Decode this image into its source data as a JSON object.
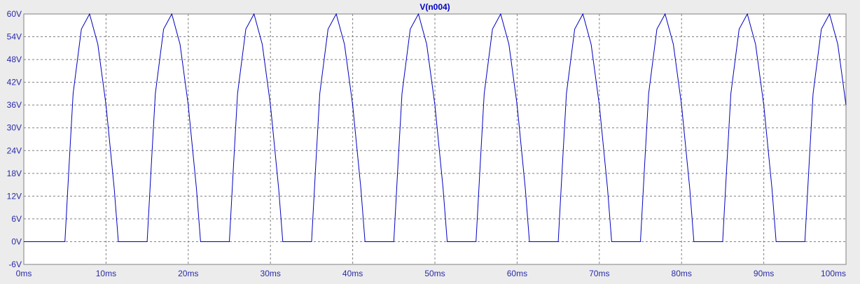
{
  "chart_data": {
    "type": "line",
    "title": "V(n004)",
    "xlabel": "",
    "ylabel": "",
    "x_unit": "ms",
    "y_unit": "V",
    "xlim": [
      0,
      100
    ],
    "ylim": [
      -6,
      60
    ],
    "x_ticks": [
      0,
      10,
      20,
      30,
      40,
      50,
      60,
      70,
      80,
      90,
      100
    ],
    "y_ticks": [
      -6,
      0,
      6,
      12,
      18,
      24,
      30,
      36,
      42,
      48,
      54,
      60
    ],
    "x_tick_labels": [
      "0ms",
      "10ms",
      "20ms",
      "30ms",
      "40ms",
      "50ms",
      "60ms",
      "70ms",
      "80ms",
      "90ms",
      "100ms"
    ],
    "y_tick_labels": [
      "-6V",
      "0V",
      "6V",
      "12V",
      "18V",
      "24V",
      "30V",
      "36V",
      "42V",
      "48V",
      "54V",
      "60V"
    ],
    "grid": true,
    "series": [
      {
        "name": "V(n004)",
        "color": "#0000c0",
        "x": [
          0,
          5,
          5.5,
          6,
          7,
          8,
          9,
          10,
          11,
          11.5,
          15,
          15.5,
          16,
          17,
          18,
          19,
          20,
          21,
          21.5,
          25,
          25.5,
          26,
          27,
          28,
          29,
          30,
          31,
          31.5,
          35,
          35.5,
          36,
          37,
          38,
          39,
          40,
          41,
          41.5,
          45,
          45.5,
          46,
          47,
          48,
          49,
          50,
          51,
          51.5,
          55,
          55.5,
          56,
          57,
          58,
          59,
          60,
          61,
          61.5,
          65,
          65.5,
          66,
          67,
          68,
          69,
          70,
          71,
          71.5,
          75,
          75.5,
          76,
          77,
          78,
          79,
          80,
          81,
          81.5,
          85,
          85.5,
          86,
          87,
          88,
          89,
          90,
          91,
          91.5,
          95,
          95.5,
          96,
          97,
          98,
          99,
          100
        ],
        "y": [
          0,
          0,
          20,
          39,
          56,
          60,
          52,
          36,
          14,
          0,
          0,
          20,
          39,
          56,
          60,
          52,
          36,
          14,
          0,
          0,
          20,
          39,
          56,
          60,
          52,
          36,
          14,
          0,
          0,
          20,
          39,
          56,
          60,
          52,
          36,
          14,
          0,
          0,
          20,
          39,
          56,
          60,
          52,
          36,
          14,
          0,
          0,
          20,
          39,
          56,
          60,
          52,
          36,
          14,
          0,
          0,
          20,
          39,
          56,
          60,
          52,
          36,
          14,
          0,
          0,
          20,
          39,
          56,
          60,
          52,
          36,
          14,
          0,
          0,
          20,
          39,
          56,
          60,
          52,
          36,
          14,
          0,
          0,
          20,
          39,
          56,
          60,
          52,
          36
        ]
      }
    ]
  },
  "colors": {
    "trace": "#0000c0",
    "plot_background": "#ffffff",
    "window_background": "#ececec",
    "grid": "#808080",
    "tick_text": "#2a2aa8"
  }
}
